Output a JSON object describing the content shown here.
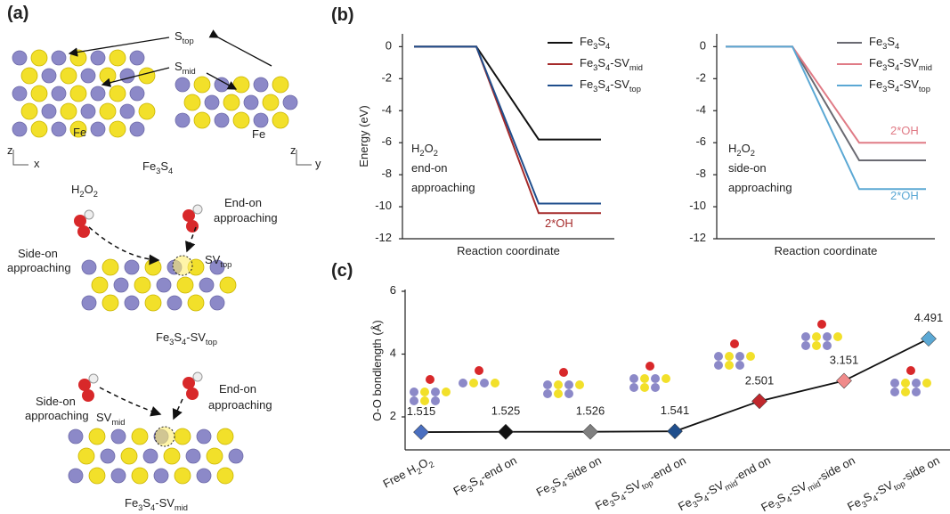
{
  "panel_labels": [
    "(a)",
    "(b)",
    "(c)"
  ],
  "panel_a": {
    "stop": "Stop",
    "smid": "Smid",
    "fe": [
      "Fe",
      "Fe"
    ],
    "axes": [
      [
        "z",
        "x"
      ],
      [
        "z",
        "y"
      ]
    ],
    "pristine": "Fe3S4",
    "sv_top": {
      "molecule": "H2O2",
      "side_on": [
        "Side-on",
        "approaching"
      ],
      "end_on": [
        "End-on",
        "approaching"
      ],
      "site": "SVtop",
      "name": "Fe3S4-SVtop"
    },
    "sv_mid": {
      "side_on": [
        "Side-on",
        "approaching"
      ],
      "end_on": [
        "End-on",
        "approaching"
      ],
      "site": "SVmid",
      "name": "Fe3S4-SVmid"
    }
  },
  "chart_data": [
    {
      "type": "line",
      "ylabel": "Energy (eV)",
      "xlabel": "Reaction coordinate",
      "categories": [
        null,
        null,
        null,
        null
      ],
      "ylim": [
        -12,
        0.8
      ],
      "yticks": [
        0,
        -2,
        -4,
        -6,
        -8,
        -10,
        -12
      ],
      "legend": "upper right",
      "note": [
        "H2O2",
        "end-on",
        "approaching"
      ],
      "annotations": [
        {
          "text": "2*OH",
          "color": "#a52a2a"
        }
      ],
      "series": [
        {
          "name": "Fe3S4",
          "color": "#111111",
          "values": [
            0,
            0,
            -5.8,
            -5.8
          ]
        },
        {
          "name": "Fe3S4-SVmid",
          "color": "#a52a2a",
          "values": [
            0,
            0,
            -10.4,
            -10.4
          ]
        },
        {
          "name": "Fe3S4-SVtop",
          "color": "#1f4e8c",
          "values": [
            0,
            0,
            -9.8,
            -9.8
          ]
        }
      ]
    },
    {
      "type": "line",
      "xlabel": "Reaction coordinate",
      "categories": [
        null,
        null,
        null,
        null
      ],
      "ylim": [
        -12,
        0.8
      ],
      "yticks": [
        0,
        -2,
        -4,
        -6,
        -8,
        -10,
        -12
      ],
      "legend": "upper right",
      "note": [
        "H2O2",
        "side-on",
        "approaching"
      ],
      "annotations": [
        {
          "text": "2*OH",
          "color": "#e07b86"
        },
        {
          "text": "2*OH",
          "color": "#5ba8d4"
        }
      ],
      "series": [
        {
          "name": "Fe3S4",
          "color": "#6a6a72",
          "values": [
            0,
            0,
            -7.1,
            -7.1
          ]
        },
        {
          "name": "Fe3S4-SVmid",
          "color": "#e07b86",
          "values": [
            0,
            0,
            -6.0,
            -6.0
          ]
        },
        {
          "name": "Fe3S4-SVtop",
          "color": "#5ba8d4",
          "values": [
            0,
            0,
            -8.9,
            -8.9
          ]
        }
      ]
    },
    {
      "type": "markerline",
      "ylabel": "O-O bondlength (Å)",
      "line_color": "#111111",
      "categories": [
        "Free H2O2",
        "Fe3S4-end on",
        "Fe3S4-side on",
        "Fe3S4-SVtop-end on",
        "Fe3S4-SVmid-end on",
        "Fe3S4-SVmid-side on",
        "Fe3S4-SVtop-side on"
      ],
      "values": [
        1.515,
        1.525,
        1.526,
        1.541,
        2.501,
        3.151,
        4.491
      ],
      "colors": [
        "#4a6fc0",
        "#111111",
        "#808080",
        "#1f4e8c",
        "#c0282d",
        "#f08a8a",
        "#5ba8d4"
      ],
      "ylim": [
        0.95,
        6
      ],
      "yticks": [
        2,
        4,
        6
      ]
    }
  ]
}
